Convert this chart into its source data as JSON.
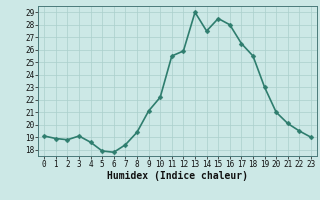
{
  "xlabel": "Humidex (Indice chaleur)",
  "ylabel": "",
  "x": [
    0,
    1,
    2,
    3,
    4,
    5,
    6,
    7,
    8,
    9,
    10,
    11,
    12,
    13,
    14,
    15,
    16,
    17,
    18,
    19,
    20,
    21,
    22,
    23
  ],
  "y": [
    19.1,
    18.9,
    18.8,
    19.1,
    18.6,
    17.9,
    17.8,
    18.4,
    19.4,
    21.1,
    22.2,
    25.5,
    25.9,
    29.0,
    27.5,
    28.5,
    28.0,
    26.5,
    25.5,
    23.0,
    21.0,
    20.1,
    19.5,
    19.0
  ],
  "line_color": "#2e7d6e",
  "marker": "D",
  "marker_size": 2.5,
  "background_color": "#cce8e6",
  "grid_color": "#aacfcc",
  "ylim": [
    17.5,
    29.5
  ],
  "xlim": [
    -0.5,
    23.5
  ],
  "yticks": [
    18,
    19,
    20,
    21,
    22,
    23,
    24,
    25,
    26,
    27,
    28,
    29
  ],
  "xticks": [
    0,
    1,
    2,
    3,
    4,
    5,
    6,
    7,
    8,
    9,
    10,
    11,
    12,
    13,
    14,
    15,
    16,
    17,
    18,
    19,
    20,
    21,
    22,
    23
  ],
  "tick_fontsize": 5.5,
  "xlabel_fontsize": 7,
  "line_width": 1.2
}
